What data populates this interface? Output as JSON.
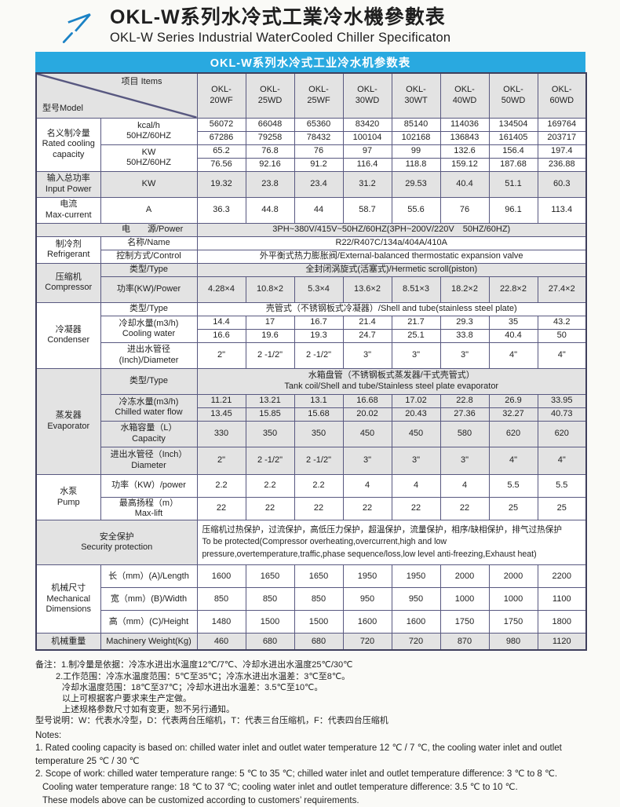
{
  "header": {
    "title_zh": "OKL-W系列水冷式工業冷水機參數表",
    "title_en": "OKL-W Series Industrial WaterCooled Chiller Specificaton",
    "logo_icon": "arrow-up-right-icon"
  },
  "banner": {
    "title": "OKL-W系列水冷式工业冷水机参数表"
  },
  "colors": {
    "banner_blue": "#29a9e0",
    "logo_blue": "#1b82c5",
    "band_gray": "#e3e3e3",
    "border": "#585880"
  },
  "table": {
    "corner": {
      "model": "型号Model",
      "items": "项目 Items"
    },
    "models": [
      "OKL-\n20WF",
      "OKL-\n25WD",
      "OKL-\n25WF",
      "OKL-\n30WD",
      "OKL-\n30WT",
      "OKL-\n40WD",
      "OKL-\n50WD",
      "OKL-\n60WD"
    ],
    "labels": {
      "rated": "名义制冷量\nRated cooling\ncapacity",
      "kcal": "kcal/h\n50HZ/60HZ",
      "kw": "KW\n50HZ/60HZ",
      "input_power": "输入总功率\nInput Power",
      "input_unit": "KW",
      "current": "电流\nMax-current",
      "current_unit": "A",
      "power": "电　　源/Power",
      "refrigerant": "制冷剂\nRefrigerant",
      "name": "名称/Name",
      "control": "控制方式/Control",
      "compressor": "压缩机\nCompressor",
      "type": "类型/Type",
      "comp_power": "功率(KW)/Power",
      "condenser": "冷凝器\nCondenser",
      "cooling_water": "冷却水量(m3/h)\nCooling water",
      "cond_dia": "进出水管径\n(Inch)/Diameter",
      "evaporator": "蒸发器\nEvaporator",
      "chilled_water": "冷冻水量(m3/h)\nChilled water flow",
      "capacity": "水箱容量（L）\nCapacity",
      "evap_dia": "进出水管径（Inch）\nDiameter",
      "pump": "水泵\nPump",
      "pump_power": "功率（KW）/power",
      "max_lift": "最高扬程（m）\nMax-lift",
      "security": "安全保护\nSecurity protection",
      "mech": "机械尺寸\nMechanical\nDimensions",
      "length": "长（mm）(A)/Length",
      "width": "宽（mm）(B)/Width",
      "height": "高（mm）(C)/Height",
      "weight": "机械重量",
      "weight_item": "Machinery Weight(Kg)"
    },
    "merged": {
      "power_source": "3PH~380V/415V~50HZ/60HZ(3PH~200V/220V　50HZ/60HZ)",
      "ref_name": "R22/R407C/134a/404A/410A",
      "ref_control": "外平衡式热力膨胀阀/External-balanced thermostatic expansion valve",
      "comp_type": "全封闭涡旋式(活塞式)/Hermetic scroll(piston)",
      "cond_type": "壳管式（不锈钢板式冷凝器）/Shell and tube(stainless steel plate)",
      "evap_type": "水箱盘管（不锈钢板式蒸发器/干式壳管式）\nTank coil/Shell and tube/Stainless steel plate evaporator",
      "security": "压缩机过热保护，过流保护，高低压力保护，超温保护，流量保护，相序/缺相保护，排气过热保护\nTo be protected(Compressor overheating,overcurrent,high and low\npressure,overtemperature,traffic,phase sequence/loss,low level anti-freezing,Exhaust heat)"
    },
    "values": {
      "kcal50": [
        "56072",
        "66048",
        "65360",
        "83420",
        "85140",
        "114036",
        "134504",
        "169764"
      ],
      "kcal60": [
        "67286",
        "79258",
        "78432",
        "100104",
        "102168",
        "136843",
        "161405",
        "203717"
      ],
      "kw50": [
        "65.2",
        "76.8",
        "76",
        "97",
        "99",
        "132.6",
        "156.4",
        "197.4"
      ],
      "kw60": [
        "76.56",
        "92.16",
        "91.2",
        "116.4",
        "118.8",
        "159.12",
        "187.68",
        "236.88"
      ],
      "input_power": [
        "19.32",
        "23.8",
        "23.4",
        "31.2",
        "29.53",
        "40.4",
        "51.1",
        "60.3"
      ],
      "max_current": [
        "36.3",
        "44.8",
        "44",
        "58.7",
        "55.6",
        "76",
        "96.1",
        "113.4"
      ],
      "comp_power": [
        "4.28×4",
        "10.8×2",
        "5.3×4",
        "13.6×2",
        "8.51×3",
        "18.2×2",
        "22.8×2",
        "27.4×2"
      ],
      "cool50": [
        "14.4",
        "17",
        "16.7",
        "21.4",
        "21.7",
        "29.3",
        "35",
        "43.2"
      ],
      "cool60": [
        "16.6",
        "19.6",
        "19.3",
        "24.7",
        "25.1",
        "33.8",
        "40.4",
        "50"
      ],
      "cond_dia": [
        "2\"",
        "2 -1/2\"",
        "2 -1/2\"",
        "3\"",
        "3\"",
        "3\"",
        "4\"",
        "4\""
      ],
      "chill50": [
        "11.21",
        "13.21",
        "13.1",
        "16.68",
        "17.02",
        "22.8",
        "26.9",
        "33.95"
      ],
      "chill60": [
        "13.45",
        "15.85",
        "15.68",
        "20.02",
        "20.43",
        "27.36",
        "32.27",
        "40.73"
      ],
      "tank_capacity": [
        "330",
        "350",
        "350",
        "450",
        "450",
        "580",
        "620",
        "620"
      ],
      "evap_dia": [
        "2\"",
        "2 -1/2\"",
        "2 -1/2\"",
        "3\"",
        "3\"",
        "3\"",
        "4\"",
        "4\""
      ],
      "pump_power": [
        "2.2",
        "2.2",
        "2.2",
        "4",
        "4",
        "4",
        "5.5",
        "5.5"
      ],
      "max_lift": [
        "22",
        "22",
        "22",
        "22",
        "22",
        "22",
        "25",
        "25"
      ],
      "length": [
        "1600",
        "1650",
        "1650",
        "1950",
        "1950",
        "2000",
        "2000",
        "2200"
      ],
      "width": [
        "850",
        "850",
        "850",
        "950",
        "950",
        "1000",
        "1000",
        "1100"
      ],
      "height": [
        "1480",
        "1500",
        "1500",
        "1600",
        "1600",
        "1750",
        "1750",
        "1800"
      ],
      "weight": [
        "460",
        "680",
        "680",
        "720",
        "720",
        "870",
        "980",
        "1120"
      ]
    }
  },
  "notes_zh": [
    "备注：1.制冷量是依据：冷冻水进出水温度12℃/7℃、冷却水进出水温度25℃/30℃",
    "2.工作范围：冷冻水温度范围：5℃至35℃；冷冻水进出水温差：3℃至8℃。",
    "冷却水温度范围：18℃至37℃；冷却水进出水温差：3.5℃至10℃。",
    "以上可根据客户要求来生产定做。",
    "上述规格参数尺寸如有变更，恕不另行通知。",
    "型号说明：W：代表水冷型，D：代表两台压缩机，T：代表三台压缩机，F：代表四台压缩机"
  ],
  "notes_en": [
    "Notes:",
    "1. Rated cooling capacity is based on: chilled water inlet and outlet water temperature 12 ℃ / 7 ℃, the cooling water inlet and outlet",
    "temperature  25 ℃ / 30 ℃",
    "2. Scope of work: chilled water temperature range: 5 ℃ to 35 ℃; chilled water inlet and outlet temperature difference: 3 ℃ to 8 ℃.",
    "Cooling water temperature range: 18 ℃ to 37 ℃; cooling water inlet and outlet temperature difference: 3.5 ℃ to 10 ℃.",
    "These models above can be customized according to customers’  requirements."
  ]
}
